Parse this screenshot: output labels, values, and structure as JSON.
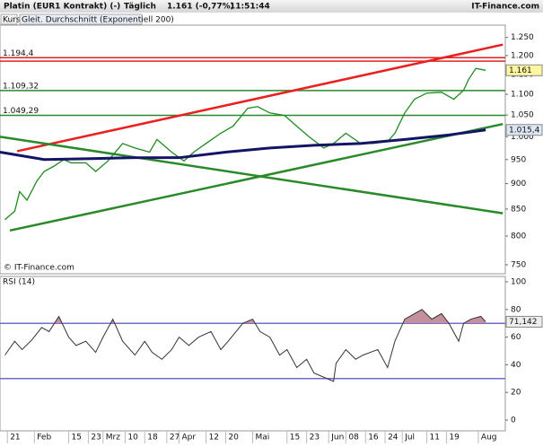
{
  "header": {
    "title": "Platin (EUR1 Kontrakt) (-)",
    "interval": "Täglich",
    "quote": "1.161 (-0,77%)",
    "time": "11:51:44",
    "brand": "IT-Finance.com",
    "copyright": "© IT-Finance.com"
  },
  "chart_data": [
    {
      "type": "line",
      "log_scale": true,
      "xlim": [
        -3,
        203
      ],
      "ylim": [
        735,
        1285
      ],
      "xticks": [
        {
          "value": 0,
          "label": "21"
        },
        {
          "value": 11,
          "label": "Feb"
        },
        {
          "value": 25,
          "label": "15"
        },
        {
          "value": 33,
          "label": "23"
        },
        {
          "value": 39,
          "label": "Mrz"
        },
        {
          "value": 48,
          "label": "10"
        },
        {
          "value": 56,
          "label": "18"
        },
        {
          "value": 65,
          "label": "27"
        },
        {
          "value": 70,
          "label": "Apr"
        },
        {
          "value": 81,
          "label": "12"
        },
        {
          "value": 89,
          "label": "20"
        },
        {
          "value": 100,
          "label": "Mai"
        },
        {
          "value": 114,
          "label": "15"
        },
        {
          "value": 122,
          "label": "23"
        },
        {
          "value": 131,
          "label": "Jun"
        },
        {
          "value": 138,
          "label": "08"
        },
        {
          "value": 146,
          "label": "16"
        },
        {
          "value": 154,
          "label": "24"
        },
        {
          "value": 161,
          "label": "Jul"
        },
        {
          "value": 171,
          "label": "11"
        },
        {
          "value": 179,
          "label": "19"
        },
        {
          "value": 192,
          "label": "Aug"
        }
      ],
      "yticks": [
        {
          "value": 750,
          "label": "750"
        },
        {
          "value": 800,
          "label": "800"
        },
        {
          "value": 850,
          "label": "850"
        },
        {
          "value": 900,
          "label": "900"
        },
        {
          "value": 950,
          "label": "950"
        },
        {
          "value": 1000,
          "label": "1.000"
        },
        {
          "value": 1050,
          "label": "1.050"
        },
        {
          "value": 1100,
          "label": "1.100"
        },
        {
          "value": 1150,
          "label": "1.150"
        },
        {
          "value": 1200,
          "label": "1.200"
        },
        {
          "value": 1250,
          "label": "1.250"
        }
      ],
      "series": [
        {
          "name": "Kurs",
          "color": "#1f8a1f",
          "width": 1.3,
          "x": [
            -1,
            3,
            5,
            8,
            12,
            15,
            19,
            23,
            26,
            32,
            36,
            41,
            47,
            52,
            58,
            61,
            67,
            72,
            76,
            81,
            87,
            92,
            98,
            102,
            107,
            113,
            118,
            123,
            129,
            133,
            138,
            144,
            149,
            155,
            158,
            162,
            166,
            171,
            177,
            182,
            186,
            188,
            191,
            195
          ],
          "values": [
            830,
            846,
            884,
            867,
            905,
            925,
            936,
            950,
            943,
            943,
            925,
            947,
            985,
            975,
            966,
            994,
            966,
            947,
            966,
            985,
            1008,
            1024,
            1066,
            1070,
            1055,
            1049,
            1024,
            1000,
            975,
            985,
            1008,
            985,
            985,
            989,
            1008,
            1055,
            1088,
            1103,
            1105,
            1088,
            1110,
            1137,
            1166,
            1161
          ],
          "current": {
            "value": 1161,
            "label": "1.161"
          },
          "box_color": "#fff6a0"
        },
        {
          "name": "Gleit. Durchschnitt (Exponentiell 200)",
          "color": "#141466",
          "width": 3,
          "x": [
            -3,
            15,
            34,
            52,
            70,
            89,
            107,
            125,
            144,
            162,
            180,
            195
          ],
          "values": [
            966,
            950,
            952,
            954,
            954,
            966,
            975,
            981,
            985,
            994,
            1004,
            1015.4
          ],
          "current": {
            "value": 1015.4,
            "label": "1.015,4"
          },
          "box_color": "#dce6f5"
        }
      ],
      "hlines": [
        {
          "value": 1194.4,
          "label": "1.194,4",
          "color": "#e02020"
        },
        {
          "value": 1185,
          "color": "#e02020"
        },
        {
          "value": 1109.32,
          "label": "1.109,32",
          "color": "#2a8a2a"
        },
        {
          "value": 1049.29,
          "label": "1.049,29",
          "color": "#2a8a2a"
        }
      ],
      "trendlines": [
        {
          "x": [
            4,
            202
          ],
          "values": [
            968,
            1230
          ],
          "color": "#e82020"
        },
        {
          "x": [
            1,
            202
          ],
          "values": [
            810,
            1029
          ],
          "color": "#2a8a2a"
        },
        {
          "x": [
            -3,
            202
          ],
          "values": [
            1000,
            842
          ],
          "color": "#2a8a2a"
        }
      ]
    },
    {
      "type": "line",
      "title": "RSI (14)",
      "xlim": [
        -3,
        203
      ],
      "ylim": [
        -7.8,
        103.9
      ],
      "yticks": [
        0,
        20,
        40,
        60,
        80,
        100
      ],
      "series": [
        {
          "name": "RSI (14)",
          "color": "#333333",
          "width": 1,
          "x": [
            -1,
            3,
            6,
            10,
            14,
            17,
            21,
            25,
            28,
            32,
            36,
            39,
            43,
            47,
            52,
            56,
            59,
            63,
            67,
            70,
            74,
            78,
            83,
            87,
            90,
            96,
            100,
            103,
            107,
            111,
            114,
            118,
            122,
            125,
            129,
            133,
            134,
            138,
            142,
            145,
            151,
            155,
            158,
            162,
            166,
            169,
            173,
            177,
            180,
            184,
            186,
            189,
            193,
            195
          ],
          "values": [
            47,
            57,
            51,
            58,
            67,
            64,
            75,
            60,
            54,
            57,
            49,
            60,
            73,
            57,
            47,
            57,
            49,
            44,
            51,
            60,
            54,
            60,
            64,
            51,
            57,
            70,
            73,
            64,
            60,
            47,
            51,
            38,
            44,
            34,
            31,
            28,
            41,
            51,
            44,
            47,
            51,
            38,
            57,
            73,
            77,
            80,
            73,
            77,
            70,
            57,
            70,
            73,
            75,
            71.142
          ],
          "current": {
            "value": 71.142,
            "label": "71,142"
          },
          "box_color": "#eeeeee"
        }
      ],
      "hlines": [
        {
          "value": 70,
          "color": "#6b6bd0"
        },
        {
          "value": 30,
          "color": "#6b6bd0"
        }
      ],
      "overbought": 70,
      "fill_color": "#c3909c"
    }
  ]
}
